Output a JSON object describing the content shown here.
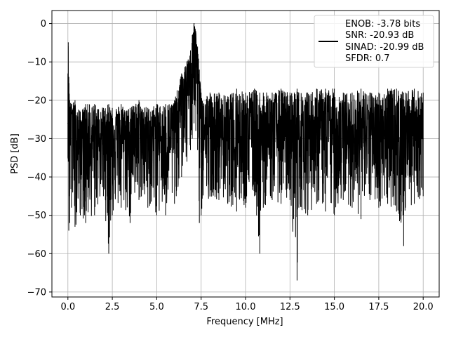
{
  "chart_data": {
    "type": "line",
    "xlabel": "Frequency [MHz]",
    "ylabel": "PSD [dB]",
    "xlim": [
      -0.9,
      20.9
    ],
    "ylim": [
      -71.3,
      3.4
    ],
    "xticks": [
      0.0,
      2.5,
      5.0,
      7.5,
      10.0,
      12.5,
      15.0,
      17.5,
      20.0
    ],
    "xtick_labels": [
      "0.0",
      "2.5",
      "5.0",
      "7.5",
      "10.0",
      "12.5",
      "15.0",
      "17.5",
      "20.0"
    ],
    "yticks": [
      0,
      -10,
      -20,
      -30,
      -40,
      -50,
      -60,
      -70
    ],
    "ytick_labels": [
      "0",
      "−10",
      "−20",
      "−30",
      "−40",
      "−50",
      "−60",
      "−70"
    ],
    "grid": true,
    "legend_position": "top-right",
    "line_color": "#000000",
    "legend_lines": [
      "ENOB: -3.78 bits",
      "SNR: -20.93 dB",
      "SINAD: -20.99 dB",
      "SFDR: 0.7"
    ],
    "series": [
      {
        "x": [
          0.0,
          0.02,
          0.05,
          0.1,
          0.2,
          0.4,
          0.7,
          1.0,
          1.5,
          2.0,
          2.3,
          2.5,
          3.0,
          3.5,
          4.0,
          4.5,
          5.0,
          5.5,
          6.0,
          6.4,
          6.7,
          6.9,
          7.0,
          7.1,
          7.2,
          7.3,
          7.4,
          7.5,
          8.0,
          8.5,
          9.0,
          9.5,
          10.0,
          10.5,
          10.8,
          11.0,
          11.5,
          12.0,
          12.5,
          12.9,
          13.0,
          13.5,
          14.0,
          14.5,
          15.0,
          15.5,
          16.0,
          16.5,
          17.0,
          17.5,
          18.0,
          18.5,
          18.9,
          19.0,
          19.5,
          20.0
        ],
        "y": [
          -26,
          -5,
          -14,
          -25,
          -22,
          -30,
          -29,
          -31,
          -30,
          -29,
          -30,
          -28,
          -29,
          -28,
          -29,
          -30,
          -29,
          -30,
          -29,
          -20,
          -16,
          -13,
          -9,
          0,
          -5,
          -10,
          -18,
          -28,
          -29,
          -29,
          -30,
          -29,
          -29,
          -29,
          -31,
          -29,
          -29,
          -30,
          -29,
          -30,
          -29,
          -29,
          -29,
          -29,
          -29,
          -30,
          -29,
          -29,
          -29,
          -29,
          -29,
          -29,
          -30,
          -29,
          -29,
          -30
        ],
        "upper": [
          -13,
          -5,
          -14,
          -20,
          -21,
          -20,
          -23,
          -21,
          -21,
          -22,
          -21,
          -22,
          -21,
          -22,
          -20,
          -22,
          -21,
          -21,
          -20,
          -13,
          -10,
          -7,
          -3,
          0,
          -2,
          -6,
          -12,
          -18,
          -18,
          -18,
          -19,
          -17,
          -18,
          -17,
          -18,
          -18,
          -18,
          -17,
          -18,
          -17,
          -18,
          -18,
          -17,
          -17,
          -17,
          -18,
          -18,
          -17,
          -18,
          -18,
          -17,
          -17,
          -18,
          -18,
          -17,
          -18
        ],
        "lower": [
          -35,
          -36,
          -54,
          -52,
          -48,
          -53,
          -50,
          -52,
          -50,
          -45,
          -60,
          -50,
          -48,
          -52,
          -46,
          -48,
          -50,
          -50,
          -47,
          -40,
          -36,
          -33,
          -30,
          -26,
          -28,
          -33,
          -52,
          -50,
          -45,
          -46,
          -47,
          -49,
          -48,
          -45,
          -60,
          -48,
          -46,
          -47,
          -46,
          -67,
          -48,
          -50,
          -47,
          -49,
          -50,
          -46,
          -48,
          -51,
          -46,
          -48,
          -47,
          -49,
          -58,
          -48,
          -47,
          -45
        ]
      }
    ]
  }
}
